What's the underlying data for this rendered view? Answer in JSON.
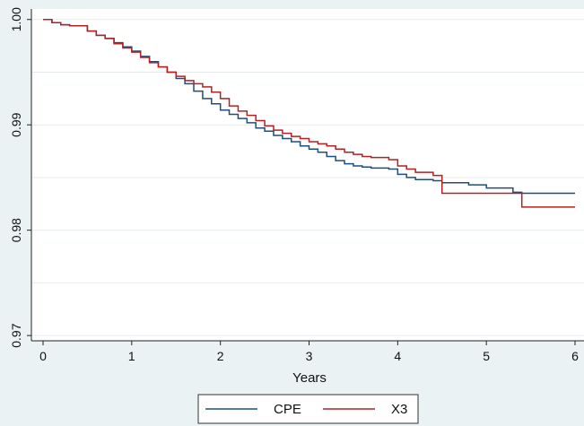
{
  "chart_data": {
    "type": "line",
    "step": true,
    "title": "",
    "xlabel": "Years",
    "ylabel": "",
    "xlim": [
      0,
      6
    ],
    "ylim": [
      0.9695,
      1.001
    ],
    "x_ticks": [
      0,
      1,
      2,
      3,
      4,
      5,
      6
    ],
    "x_tick_labels": [
      "0",
      "1",
      "2",
      "3",
      "4",
      "5",
      "6"
    ],
    "y_ticks": [
      0.97,
      0.98,
      0.99,
      1.0
    ],
    "y_tick_labels": [
      "0.97",
      "0.98",
      "0.99",
      "1.00"
    ],
    "grid": true,
    "legend_position": "bottom-center",
    "colors": {
      "CPE": "#1f4e79",
      "X3": "#b22222"
    },
    "series": [
      {
        "name": "CPE",
        "color": "#1f4e79",
        "x": [
          0,
          0.1,
          0.2,
          0.3,
          0.5,
          0.6,
          0.7,
          0.8,
          0.9,
          1.0,
          1.1,
          1.2,
          1.3,
          1.4,
          1.5,
          1.6,
          1.7,
          1.8,
          1.9,
          2.0,
          2.1,
          2.2,
          2.3,
          2.4,
          2.5,
          2.6,
          2.7,
          2.8,
          2.9,
          3.0,
          3.1,
          3.2,
          3.3,
          3.4,
          3.5,
          3.6,
          3.7,
          3.9,
          4.0,
          4.1,
          4.2,
          4.4,
          4.5,
          4.8,
          5.0,
          5.3,
          5.4,
          6.0
        ],
        "y": [
          1.0,
          0.9997,
          0.9995,
          0.9994,
          0.9989,
          0.9985,
          0.9982,
          0.9978,
          0.9974,
          0.997,
          0.9965,
          0.996,
          0.9955,
          0.995,
          0.9944,
          0.9939,
          0.9932,
          0.9925,
          0.992,
          0.9914,
          0.991,
          0.9906,
          0.9902,
          0.9897,
          0.9894,
          0.989,
          0.9887,
          0.9884,
          0.988,
          0.9877,
          0.9874,
          0.987,
          0.9866,
          0.9863,
          0.9861,
          0.986,
          0.9859,
          0.9858,
          0.9853,
          0.985,
          0.9848,
          0.9847,
          0.9845,
          0.9843,
          0.984,
          0.9836,
          0.9835,
          0.9835
        ]
      },
      {
        "name": "X3",
        "color": "#b22222",
        "x": [
          0,
          0.1,
          0.2,
          0.3,
          0.5,
          0.6,
          0.7,
          0.8,
          0.9,
          1.0,
          1.1,
          1.2,
          1.3,
          1.4,
          1.5,
          1.6,
          1.7,
          1.8,
          1.9,
          2.0,
          2.1,
          2.2,
          2.3,
          2.4,
          2.5,
          2.6,
          2.7,
          2.8,
          2.9,
          3.0,
          3.1,
          3.2,
          3.3,
          3.4,
          3.5,
          3.6,
          3.7,
          3.9,
          4.0,
          4.1,
          4.2,
          4.4,
          4.5,
          5.4,
          6.0
        ],
        "y": [
          1.0,
          0.9997,
          0.9995,
          0.9994,
          0.9989,
          0.9985,
          0.9982,
          0.9977,
          0.9973,
          0.9969,
          0.9964,
          0.9959,
          0.9955,
          0.995,
          0.9946,
          0.9942,
          0.9939,
          0.9936,
          0.9931,
          0.9925,
          0.9918,
          0.9913,
          0.9909,
          0.9904,
          0.9899,
          0.9895,
          0.9892,
          0.9889,
          0.9887,
          0.9884,
          0.9882,
          0.988,
          0.9877,
          0.9874,
          0.9872,
          0.987,
          0.9869,
          0.9867,
          0.9861,
          0.9858,
          0.9855,
          0.9852,
          0.9835,
          0.9822,
          0.9822
        ]
      }
    ]
  }
}
